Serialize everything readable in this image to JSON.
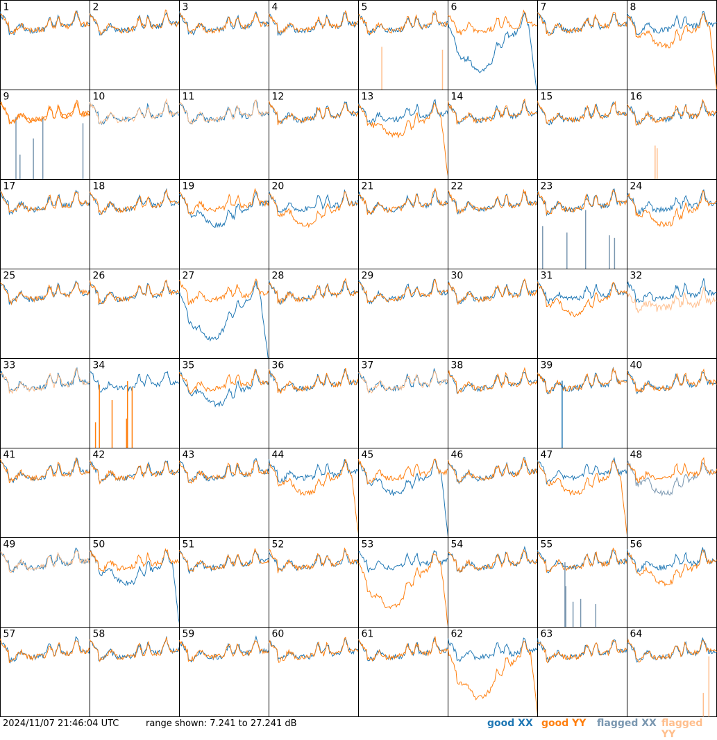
{
  "chart_data": {
    "type": "line",
    "grid": "8x8 small multiples",
    "panel_labels": [
      "1",
      "2",
      "3",
      "4",
      "5",
      "6",
      "7",
      "8",
      "9",
      "10",
      "11",
      "12",
      "13",
      "14",
      "15",
      "16",
      "17",
      "18",
      "19",
      "20",
      "21",
      "22",
      "23",
      "24",
      "25",
      "26",
      "27",
      "28",
      "29",
      "30",
      "31",
      "32",
      "33",
      "34",
      "35",
      "36",
      "37",
      "38",
      "39",
      "40",
      "41",
      "42",
      "43",
      "44",
      "45",
      "46",
      "47",
      "48",
      "49",
      "50",
      "51",
      "52",
      "53",
      "54",
      "55",
      "56",
      "57",
      "58",
      "59",
      "60",
      "61",
      "62",
      "63",
      "64"
    ],
    "range_db": [
      7.241,
      27.241
    ],
    "series": [
      {
        "name": "good XX",
        "color": "#1f77b4"
      },
      {
        "name": "good YY",
        "color": "#ff7f0e"
      },
      {
        "name": "flagged XX",
        "color": "#7a97b0"
      },
      {
        "name": "flagged YY",
        "color": "#ffbe8c"
      }
    ],
    "panel_types": {
      "5": "flagYYspikes",
      "6": "xxDeep",
      "8": "yyDrop",
      "9": "flagXXspikes",
      "10": "flaggedBoth",
      "11": "flaggedBoth",
      "13": "yyDrop",
      "16": "flagYYspikes",
      "19": "xxDip",
      "20": "yyDip",
      "23": "flagXXspikes",
      "24": "yyDip",
      "27": "xxDeep",
      "31": "yyDip",
      "32": "flaggedYYonly",
      "33": "flaggedBothLight",
      "34": "yyLowSpikes",
      "35": "xxDip",
      "37": "flaggedBothLight",
      "39": "xxSpike",
      "44": "yyDrop",
      "45": "xxDrop",
      "47": "yyDrop",
      "48": "flaggedXXdip",
      "49": "flaggedBothLight",
      "50": "xxDrop",
      "53": "yyDeep",
      "55": "flagXXspikes",
      "56": "yyDip",
      "62": "yyDeep",
      "64": "flagYYspikes"
    }
  },
  "footer": {
    "timestamp": "2024/11/07 21:46:04 UTC",
    "range_text": "range shown: 7.241 to 27.241 dB"
  },
  "legend": {
    "good_xx": "good XX",
    "good_yy": "good YY",
    "flagged_xx": "flagged XX",
    "flagged_yy": "flagged YY"
  },
  "colors": {
    "xx": "#1f77b4",
    "yy": "#ff7f0e",
    "flagged_xx": "#7a97b0",
    "flagged_yy": "#ffbe8c"
  }
}
